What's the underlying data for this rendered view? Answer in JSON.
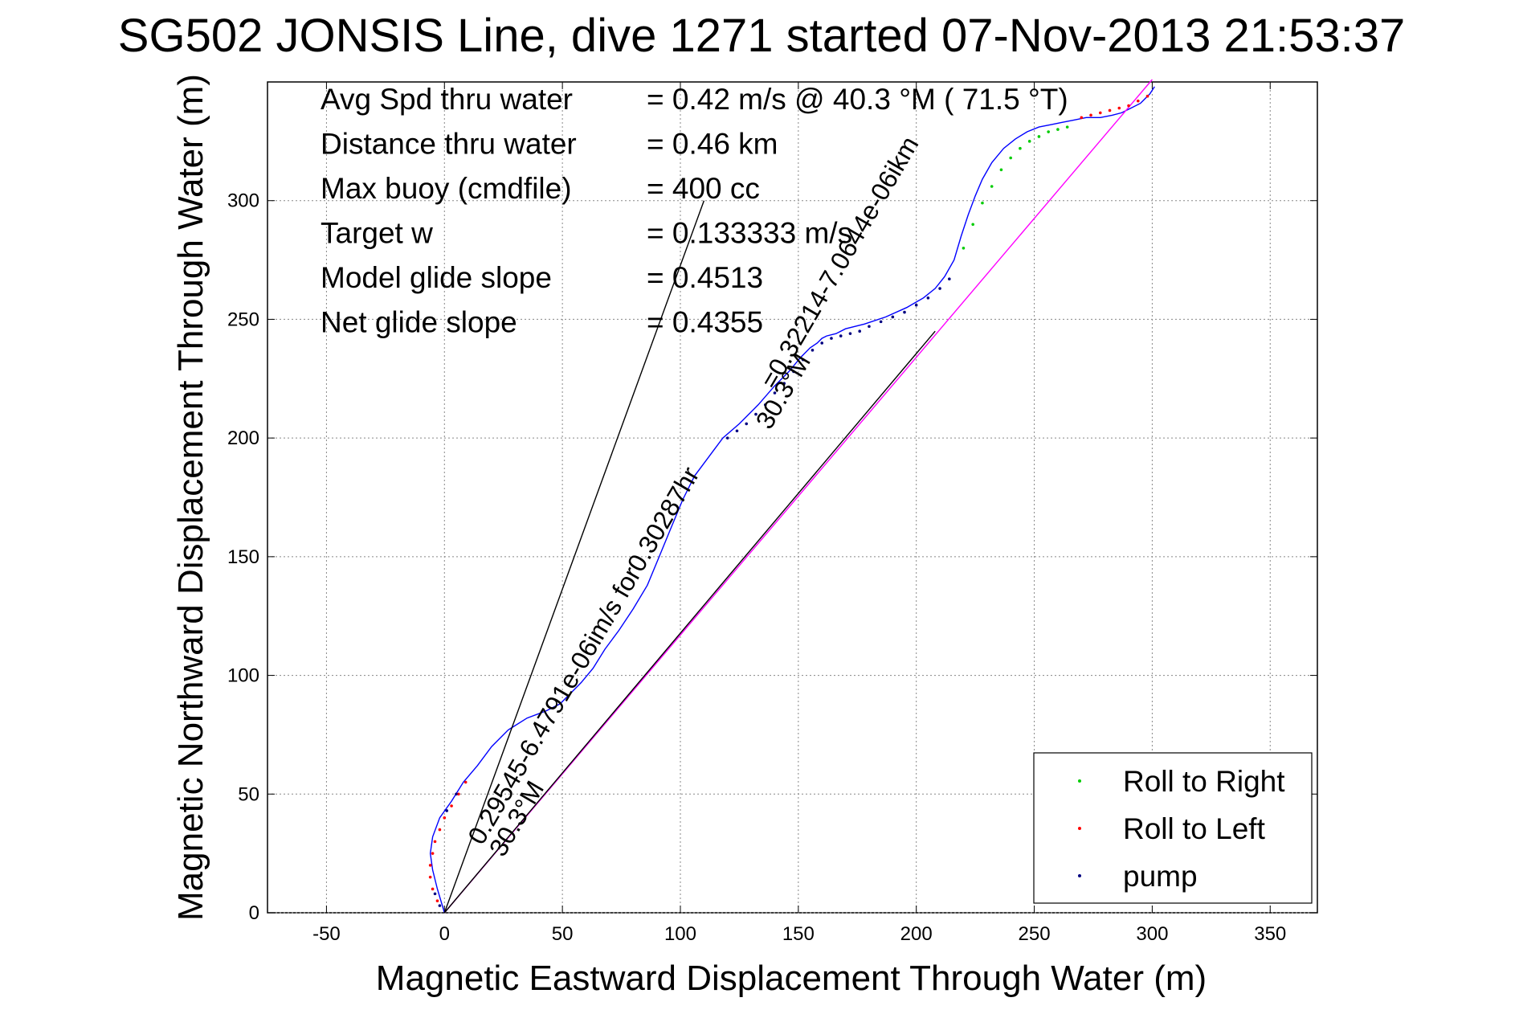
{
  "chart_data": {
    "type": "line",
    "title": "SG502 JONSIS Line, dive 1271 started 07-Nov-2013 21:53:37",
    "xlabel": "Magnetic Eastward Displacement Through Water (m)",
    "ylabel": "Magnetic Northward Displacement Through Water (m)",
    "xlim": [
      -75,
      370
    ],
    "ylim": [
      0,
      350
    ],
    "xticks": [
      -50,
      0,
      50,
      100,
      150,
      200,
      250,
      300,
      350
    ],
    "yticks": [
      0,
      50,
      100,
      150,
      200,
      250,
      300
    ],
    "grid": true,
    "legend_position": "bottom-right",
    "legend": [
      {
        "label": "Roll to Right",
        "color": "#00cc00"
      },
      {
        "label": "Roll to Left",
        "color": "#ff0000"
      },
      {
        "label": "pump",
        "color": "#000080"
      }
    ],
    "info_rows": [
      {
        "label": "Avg Spd thru water",
        "value": "=  0.42 m/s @  40.3 °M ( 71.5 °T)"
      },
      {
        "label": "Distance thru water",
        "value": "=  0.46 km"
      },
      {
        "label": "Max buoy (cmdfile)",
        "value": "= 400 cc"
      },
      {
        "label": "Target w",
        "value": "= 0.133333 m/s"
      },
      {
        "label": "Model glide slope",
        "value": "= 0.4513"
      },
      {
        "label": "Net glide slope",
        "value": "= 0.4355"
      }
    ],
    "annotations": [
      {
        "text": "0.29545-6.4791e-06im/s for0.30287hr",
        "x": 16,
        "y": 28,
        "angle_deg": 59.7
      },
      {
        "text": "30.3°M",
        "x": 25,
        "y": 23,
        "angle_deg": 59.7
      },
      {
        "text": "=0.32214-7.0644e-06ikm",
        "x": 140,
        "y": 220,
        "angle_deg": 59.7
      },
      {
        "text": "30.3°M",
        "x": 138,
        "y": 203,
        "angle_deg": 59.7
      }
    ],
    "series": [
      {
        "name": "track",
        "color": "#0000ff",
        "x": [
          0,
          -3,
          -5,
          -6,
          -5,
          -2,
          3,
          8,
          14,
          20,
          27,
          35,
          43,
          49,
          53,
          58,
          63,
          68,
          74,
          80,
          86,
          91,
          96,
          101,
          106,
          112,
          118,
          125,
          133,
          140,
          146,
          151,
          155,
          158,
          160,
          162,
          166,
          170,
          178,
          187,
          196,
          203,
          208,
          212,
          216,
          219,
          222,
          225,
          228,
          232,
          237,
          242,
          247,
          252,
          257,
          262,
          267,
          272,
          278,
          283,
          287,
          291,
          295,
          299,
          301
        ],
        "y": [
          0,
          10,
          18,
          25,
          32,
          40,
          47,
          55,
          62,
          70,
          77,
          82,
          85,
          88,
          92,
          97,
          103,
          111,
          119,
          128,
          138,
          150,
          162,
          174,
          184,
          192,
          200,
          206,
          214,
          222,
          228,
          234,
          238,
          240,
          242,
          243,
          244,
          246,
          248,
          251,
          255,
          259,
          263,
          268,
          275,
          285,
          294,
          302,
          309,
          316,
          322,
          326,
          329,
          331,
          332,
          333,
          334,
          335,
          335,
          336,
          337,
          339,
          341,
          345,
          348
        ]
      },
      {
        "name": "heading",
        "color": "#ff00ff",
        "x": [
          0,
          300
        ],
        "y": [
          0,
          351
        ]
      },
      {
        "name": "glide-cone-left",
        "color": "#000000",
        "x": [
          0,
          110
        ],
        "y": [
          0,
          300
        ]
      },
      {
        "name": "glide-cone-right",
        "color": "#000000",
        "x": [
          0,
          208
        ],
        "y": [
          0,
          245
        ]
      }
    ],
    "roll_right_points": {
      "x": [
        220,
        224,
        228,
        232,
        236,
        240,
        244,
        248,
        252,
        256,
        260,
        264
      ],
      "y": [
        280,
        290,
        299,
        306,
        313,
        318,
        322,
        325,
        327,
        329,
        330,
        331
      ]
    },
    "roll_left_points": {
      "x": [
        -3,
        -5,
        -6,
        -6,
        -5,
        -4,
        -2,
        0,
        3,
        6,
        9,
        270,
        274,
        278,
        282,
        286,
        290,
        294,
        298
      ],
      "y": [
        5,
        10,
        15,
        20,
        25,
        30,
        35,
        40,
        45,
        50,
        55,
        335,
        336,
        337,
        338,
        339,
        340,
        342,
        344
      ]
    },
    "pump_points": {
      "x": [
        -2,
        -4,
        1,
        5,
        120,
        124,
        128,
        132,
        136,
        140,
        144,
        148,
        152,
        156,
        160,
        164,
        168,
        172,
        176,
        180,
        185,
        190,
        195,
        200,
        205,
        210,
        214
      ],
      "y": [
        3,
        8,
        43,
        50,
        200,
        203,
        206,
        210,
        214,
        219,
        223,
        228,
        233,
        237,
        240,
        242,
        243,
        244,
        245,
        247,
        249,
        251,
        253,
        256,
        259,
        263,
        267
      ]
    }
  }
}
